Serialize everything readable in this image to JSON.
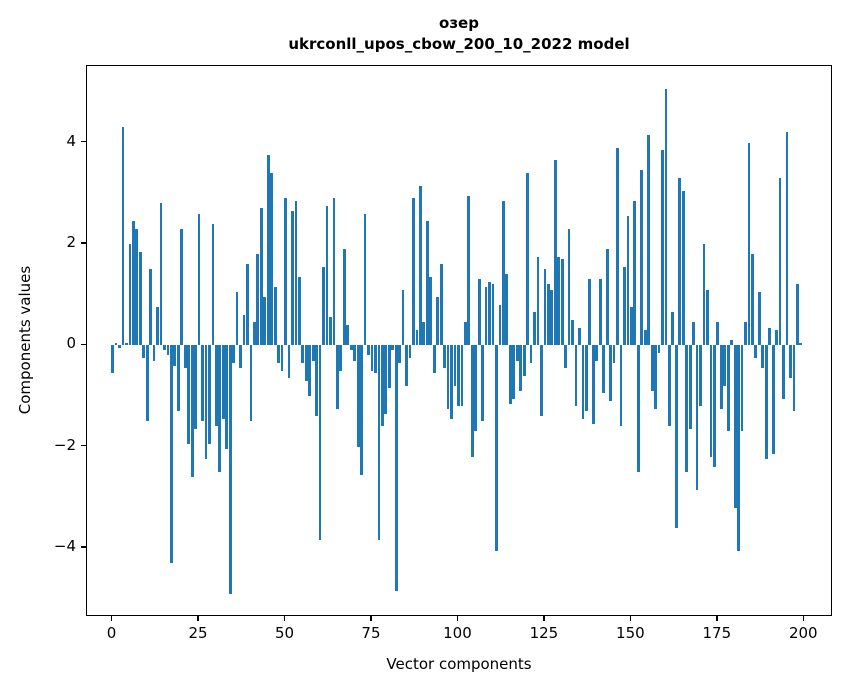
{
  "figure": {
    "title_line1": "озер",
    "title_line2": "ukrconll_upos_cbow_200_10_2022 model",
    "xlabel": "Vector components",
    "ylabel": "Components values"
  },
  "chart_data": {
    "type": "bar",
    "title": "озер",
    "subtitle": "ukrconll_upos_cbow_200_10_2022 model",
    "xlabel": "Vector components",
    "ylabel": "Components values",
    "x_range": [
      0,
      199
    ],
    "x_tick_values": [
      0,
      25,
      50,
      75,
      100,
      125,
      150,
      175,
      200
    ],
    "x_tick_labels": [
      "0",
      "25",
      "50",
      "75",
      "100",
      "125",
      "150",
      "175",
      "200"
    ],
    "y_tick_values": [
      4,
      2,
      0,
      -2,
      -4
    ],
    "y_tick_labels": [
      "4",
      "2",
      "0",
      "−2",
      "−4"
    ],
    "xlim": [
      -7.4,
      208.3
    ],
    "ylim": [
      -5.36,
      5.51
    ],
    "grid": false,
    "legend": "none",
    "bar_color": "#1f77b4",
    "bar_width": 0.8,
    "values": [
      -0.55,
      0.05,
      -0.05,
      4.3,
      0.05,
      2.0,
      2.45,
      2.3,
      1.85,
      -0.25,
      -1.5,
      1.5,
      -0.3,
      0.75,
      2.8,
      -0.1,
      -0.2,
      -4.3,
      -0.4,
      -1.3,
      2.3,
      -0.45,
      -1.95,
      -2.6,
      -1.65,
      2.6,
      -1.5,
      -2.25,
      -1.95,
      2.4,
      -1.6,
      -2.5,
      -1.45,
      -2.05,
      -4.9,
      -0.35,
      1.05,
      -0.45,
      0.6,
      1.6,
      -1.5,
      0.45,
      1.8,
      2.7,
      0.95,
      3.75,
      3.4,
      1.15,
      -0.35,
      -0.5,
      2.9,
      -0.65,
      2.65,
      2.85,
      1.35,
      -0.35,
      -0.7,
      -1.0,
      -0.3,
      -1.4,
      -3.85,
      1.55,
      2.75,
      0.55,
      2.9,
      -1.25,
      -0.5,
      1.9,
      0.4,
      -0.1,
      -0.3,
      -2.0,
      -2.55,
      2.6,
      -0.2,
      -0.5,
      -0.55,
      -3.85,
      -1.6,
      -1.35,
      -0.85,
      -0.1,
      -4.85,
      -0.35,
      1.1,
      -0.8,
      -0.25,
      2.9,
      0.3,
      3.15,
      0.45,
      2.45,
      1.35,
      -0.55,
      0.95,
      1.6,
      -0.45,
      -1.25,
      -1.45,
      -0.8,
      -1.2,
      -1.2,
      0.45,
      2.95,
      -2.2,
      -1.7,
      1.3,
      -1.5,
      1.15,
      1.25,
      1.2,
      -4.05,
      0.8,
      2.85,
      1.4,
      -1.15,
      -1.05,
      -0.3,
      -0.9,
      -0.6,
      3.4,
      -0.35,
      0.65,
      1.75,
      -1.4,
      1.5,
      1.2,
      1.1,
      3.65,
      1.75,
      1.7,
      -0.45,
      2.3,
      0.5,
      -1.2,
      0.35,
      -1.45,
      -1.3,
      1.3,
      -1.55,
      -0.3,
      1.3,
      -0.95,
      1.9,
      -1.1,
      -0.35,
      3.9,
      -1.6,
      1.55,
      2.55,
      0.75,
      2.85,
      -2.5,
      3.45,
      0.3,
      4.15,
      -0.9,
      -1.25,
      -0.15,
      3.85,
      5.05,
      -1.6,
      0.65,
      -3.6,
      3.3,
      3.05,
      -2.5,
      -1.65,
      0.45,
      -2.85,
      -1.2,
      2.0,
      1.1,
      -2.2,
      -2.4,
      0.45,
      -1.25,
      -0.8,
      -1.7,
      0.1,
      -3.2,
      -4.05,
      -1.7,
      0.45,
      4.0,
      1.8,
      -0.25,
      1.05,
      -0.45,
      -2.25,
      0.35,
      -2.15,
      0.3,
      3.3,
      -1.05,
      4.2,
      -0.65,
      -1.3,
      1.2,
      0.05
    ]
  }
}
